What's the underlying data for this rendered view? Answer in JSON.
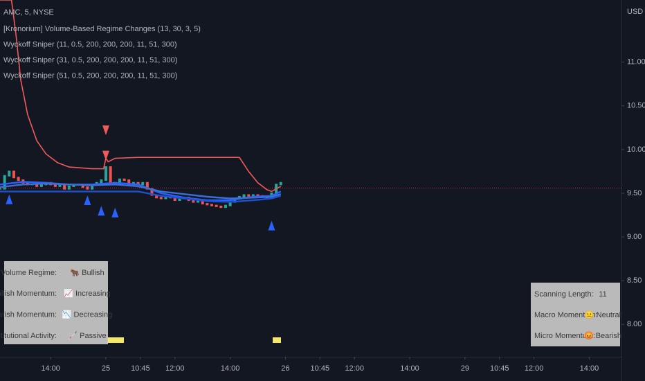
{
  "chart_data": {
    "type": "candlestick",
    "price_axis_label": "USD",
    "xlim": [
      0,
      270
    ],
    "xticks": [
      {
        "value": 22,
        "label": "14:00"
      },
      {
        "value": 46,
        "label": "25"
      },
      {
        "value": 61,
        "label": "10:45"
      },
      {
        "value": 76,
        "label": "12:00"
      },
      {
        "value": 100,
        "label": "14:00"
      },
      {
        "value": 124,
        "label": "26"
      },
      {
        "value": 139,
        "label": "10:45"
      },
      {
        "value": 154,
        "label": "12:00"
      },
      {
        "value": 178,
        "label": "14:00"
      },
      {
        "value": 202,
        "label": "29"
      },
      {
        "value": 217,
        "label": "10:45"
      },
      {
        "value": 232,
        "label": "12:00"
      },
      {
        "value": 256,
        "label": "14:00"
      }
    ],
    "ylim": [
      7.63,
      11.71
    ],
    "yticks": [
      {
        "value": 8,
        "label": "8.00"
      },
      {
        "value": 8.5,
        "label": "8.50"
      },
      {
        "value": 9,
        "label": "9.00"
      },
      {
        "value": 9.5,
        "label": "9.50"
      },
      {
        "value": 10,
        "label": "10.00"
      },
      {
        "value": 10.5,
        "label": "10.50"
      },
      {
        "value": 11,
        "label": "11.00"
      }
    ],
    "last_price": 9.56,
    "last_price_color": "#f23645",
    "price": {
      "name": "AMC, 5, NYSE",
      "up_color": "#26a69a",
      "down_color": "#ef5350",
      "x": [
        0,
        2,
        4,
        6,
        8,
        10,
        12,
        14,
        16,
        18,
        20,
        22,
        24,
        26,
        28,
        30,
        32,
        34,
        36,
        38,
        40,
        42,
        44,
        46,
        48,
        50,
        52,
        54,
        56,
        58,
        60,
        62,
        64,
        66,
        68,
        70,
        72,
        74,
        76,
        78,
        80,
        82,
        84,
        86,
        88,
        90,
        92,
        94,
        96,
        98,
        100,
        102,
        104,
        106,
        108,
        110,
        112,
        114,
        116,
        118,
        120,
        122
      ],
      "values": [
        9.55,
        9.7,
        9.75,
        9.68,
        9.65,
        9.62,
        9.6,
        9.6,
        9.58,
        9.6,
        9.62,
        9.6,
        9.58,
        9.6,
        9.55,
        9.58,
        9.6,
        9.6,
        9.57,
        9.55,
        9.6,
        9.62,
        9.65,
        9.8,
        9.62,
        9.6,
        9.66,
        9.65,
        9.6,
        9.62,
        9.6,
        9.62,
        9.55,
        9.48,
        9.45,
        9.44,
        9.46,
        9.45,
        9.42,
        9.44,
        9.45,
        9.42,
        9.4,
        9.41,
        9.38,
        9.37,
        9.36,
        9.35,
        9.34,
        9.36,
        9.4,
        9.44,
        9.46,
        9.48,
        9.47,
        9.48,
        9.47,
        9.46,
        9.45,
        9.5,
        9.6,
        9.62
      ]
    },
    "series": [
      {
        "name": "[Kronorium] Volume-Based Regime Changes (13, 30, 3, 5)",
        "color": "#f05a5a",
        "x": [
          0,
          5,
          7,
          9,
          12,
          16,
          20,
          25,
          30,
          40,
          45,
          46,
          47,
          50,
          60,
          80,
          100,
          104,
          108,
          112,
          116,
          118,
          120,
          122
        ],
        "values": [
          11.71,
          11.71,
          11.3,
          10.8,
          10.4,
          10.1,
          9.95,
          9.85,
          9.8,
          9.78,
          9.78,
          9.9,
          9.86,
          9.9,
          9.91,
          9.91,
          9.91,
          9.91,
          9.75,
          9.62,
          9.54,
          9.52,
          9.55,
          9.58
        ]
      },
      {
        "name": "Wyckoff Sniper (11, 0.5, 200, 200, 200, 11, 51, 300)",
        "color": "#2962ff",
        "x": [
          0,
          10,
          20,
          30,
          40,
          50,
          60,
          70,
          80,
          90,
          100,
          110,
          118,
          122
        ],
        "values": [
          9.6,
          9.63,
          9.62,
          9.6,
          9.6,
          9.62,
          9.6,
          9.5,
          9.45,
          9.42,
          9.42,
          9.46,
          9.47,
          9.52
        ]
      },
      {
        "name": "Wyckoff Sniper (31, 0.5, 200, 200, 200, 11, 51, 300)",
        "color": "#3a6fd8",
        "x": [
          0,
          10,
          20,
          30,
          40,
          50,
          60,
          70,
          80,
          90,
          100,
          110,
          118,
          122
        ],
        "values": [
          9.57,
          9.6,
          9.61,
          9.6,
          9.59,
          9.6,
          9.58,
          9.52,
          9.49,
          9.46,
          9.44,
          9.45,
          9.46,
          9.49
        ]
      },
      {
        "name": "Wyckoff Sniper (51, 0.5, 200, 200, 200, 11, 51, 300)",
        "color": "#1e50d0",
        "x": [
          0,
          10,
          20,
          30,
          40,
          50,
          60,
          70,
          80,
          90,
          100,
          110,
          118,
          122
        ],
        "values": [
          9.52,
          9.52,
          9.52,
          9.52,
          9.52,
          9.52,
          9.52,
          9.47,
          9.44,
          9.41,
          9.4,
          9.42,
          9.44,
          9.47
        ]
      }
    ],
    "signals": [
      {
        "direction": "down",
        "color": "#f05a5a",
        "x": [
          46,
          46
        ],
        "values": [
          10.22,
          9.93
        ]
      },
      {
        "direction": "up",
        "color": "#2962ff",
        "x": [
          4,
          38,
          44,
          50,
          118
        ],
        "values": [
          9.43,
          9.42,
          9.3,
          9.28,
          9.13
        ]
      }
    ]
  },
  "tables": [
    {
      "rows": [
        [
          "Volume Regime:",
          "🐂 Bullish"
        ],
        [
          "Bullish Momentum:",
          "📈 Increasing"
        ],
        [
          "Bearish Momentum:",
          "📉 Decreasing"
        ],
        [
          "Institutional Activity:",
          "🦯 Passive"
        ]
      ]
    },
    {
      "rows": [
        [
          "Scanning Length:",
          "11"
        ],
        [
          "Macro Momentum:",
          "😐 Neutral"
        ],
        [
          "Micro Momentum:",
          "😡 Bearish"
        ]
      ]
    }
  ]
}
